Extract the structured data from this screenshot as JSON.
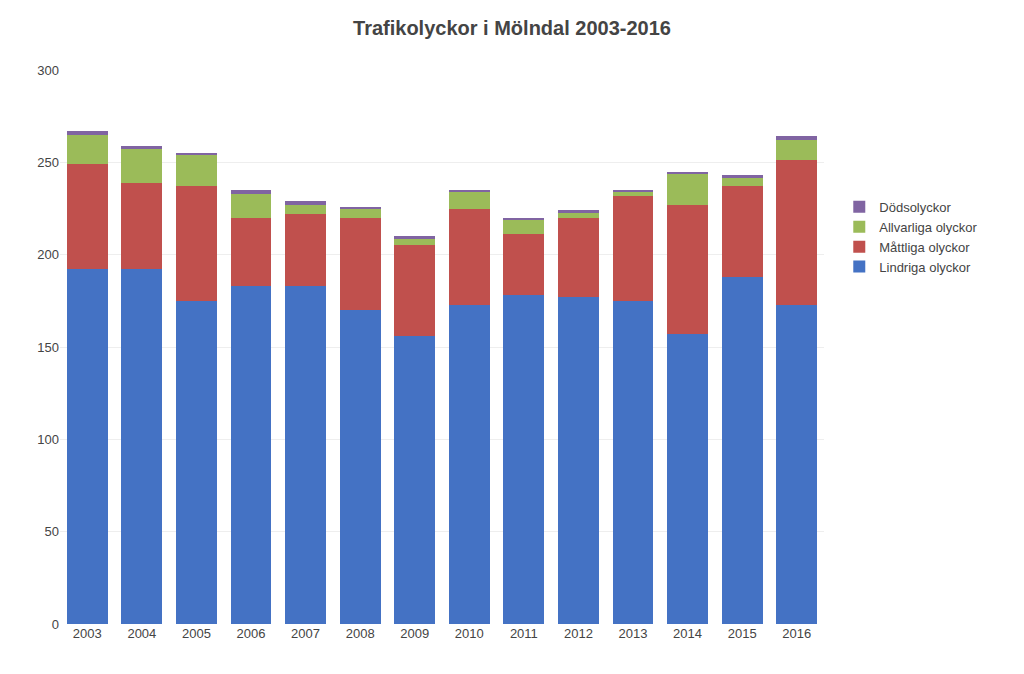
{
  "chart_data": {
    "type": "bar",
    "title": "Trafikolyckor i Mölndal 2003-2016",
    "categories": [
      "2003",
      "2004",
      "2005",
      "2006",
      "2007",
      "2008",
      "2009",
      "2010",
      "2011",
      "2012",
      "2013",
      "2014",
      "2015",
      "2016"
    ],
    "series": [
      {
        "name": "Lindriga olyckor",
        "color": "#4472C4",
        "values": [
          192,
          192,
          175,
          183,
          183,
          170,
          156,
          173,
          178,
          177,
          175,
          157,
          188,
          173
        ]
      },
      {
        "name": "Måttliga olyckor",
        "color": "#C0504D",
        "values": [
          57,
          47,
          62,
          37,
          39,
          50,
          49,
          52,
          33,
          43,
          57,
          70,
          49,
          78
        ]
      },
      {
        "name": "Allvarliga olyckor",
        "color": "#9BBB59",
        "values": [
          16,
          18,
          17,
          13,
          5,
          5,
          4,
          9,
          8,
          3,
          2,
          17,
          5,
          11
        ]
      },
      {
        "name": "Dödsolyckor",
        "color": "#8064A2",
        "values": [
          2,
          2,
          1,
          2,
          2,
          1,
          1,
          1,
          1,
          1,
          1,
          1,
          1,
          2
        ]
      }
    ],
    "stacked": true,
    "ylim": [
      0,
      300
    ],
    "yticks": [
      0,
      50,
      100,
      150,
      200,
      250,
      300
    ],
    "grid": true,
    "legend": "right"
  }
}
